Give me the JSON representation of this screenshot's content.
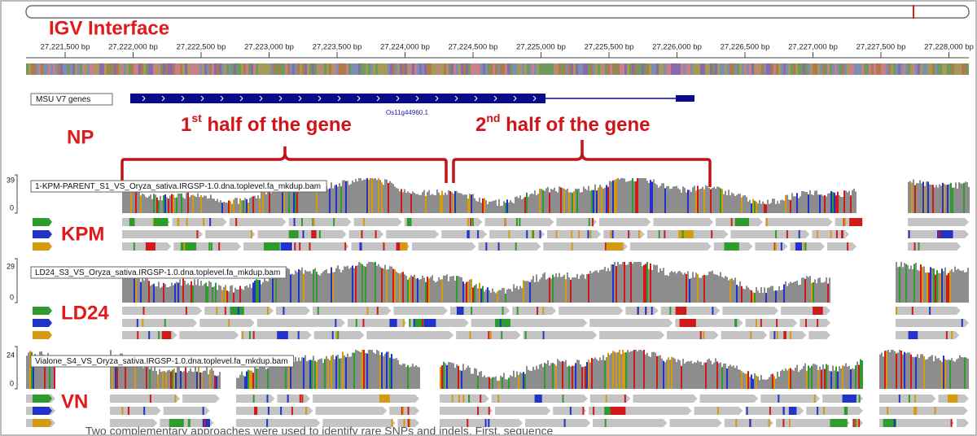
{
  "header": {
    "title": "IGV Interface"
  },
  "ruler": {
    "ticks": [
      "27,221,500 bp",
      "27,222,000 bp",
      "27,222,500 bp",
      "27,223,000 bp",
      "27,223,500 bp",
      "27,224,000 bp",
      "27,224,500 bp",
      "27,225,000 bp",
      "27,225,500 bp",
      "27,226,000 bp",
      "27,226,500 bp",
      "27,227,000 bp",
      "27,227,500 bp",
      "27,228,000 bp"
    ]
  },
  "gene_track": {
    "name": "MSU V7 genes",
    "gene": "Os11g44960.1"
  },
  "annotations": {
    "np": "NP",
    "first_half": {
      "number": "1",
      "suffix": "st",
      "text": " half of the gene"
    },
    "second_half": {
      "number": "2",
      "suffix": "nd",
      "text": " half of the gene"
    }
  },
  "tracks": [
    {
      "label": "KPM",
      "file": "1-KPM-PARENT_S1_VS_Oryza_sativa.IRGSP-1.0.dna.toplevel.fa_mkdup.bam",
      "scale_max": "39",
      "scale_min": "0"
    },
    {
      "label": "LD24",
      "file": "LD24_S3_VS_Oryza_sativa.IRGSP-1.0.dna.toplevel.fa_mkdup.bam",
      "scale_max": "29",
      "scale_min": "0"
    },
    {
      "label": "VN",
      "file": "Vialone_S4_VS_Oryza_sativa.IRGSP-1.0.dna.toplevel.fa_mkdup.bam",
      "scale_max": "24",
      "scale_min": "0"
    }
  ],
  "caption": "Two complementary approaches were used to identify rare SNPs and indels. First, sequence"
}
